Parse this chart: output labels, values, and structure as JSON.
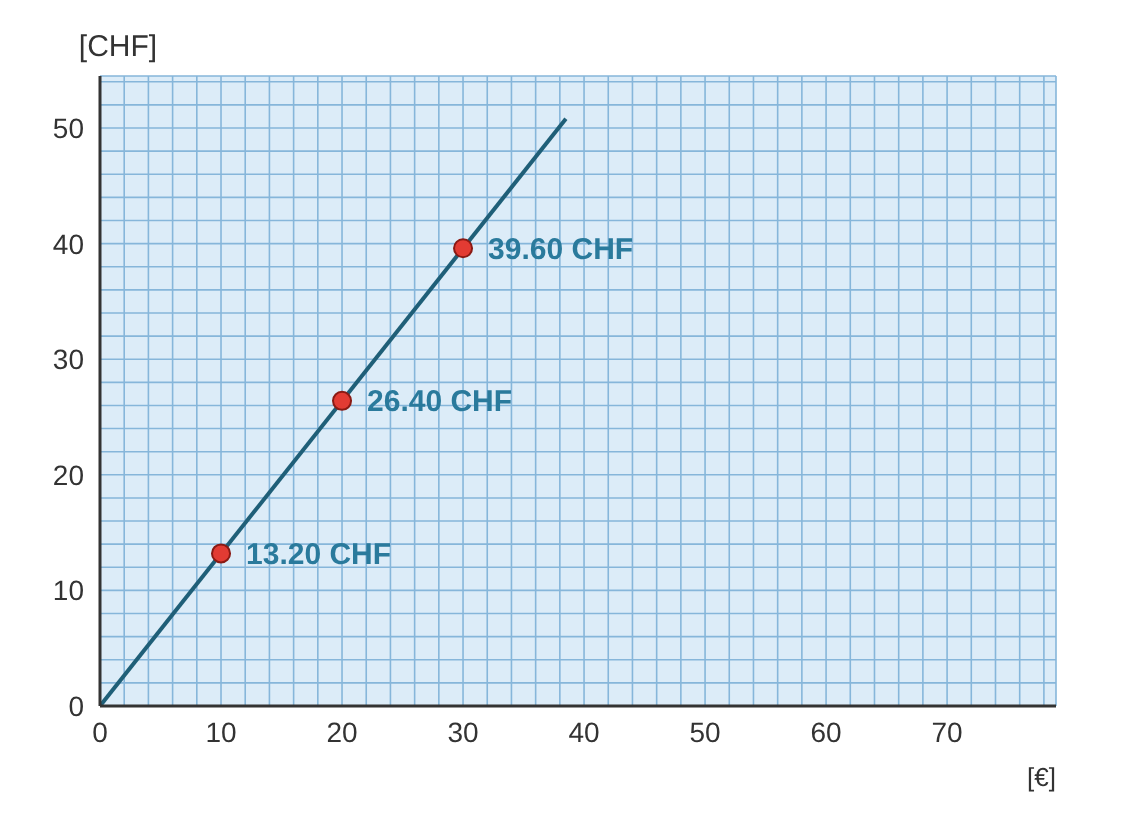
{
  "chart_data": {
    "type": "line",
    "xlabel": "[€]",
    "ylabel": "[CHF]",
    "xlim": [
      0,
      79
    ],
    "ylim": [
      0,
      54.5
    ],
    "xticks": [
      0,
      {
        "value": 2,
        "label": null
      },
      {
        "value": 4,
        "label": null
      },
      {
        "value": 6,
        "label": null
      },
      {
        "value": 8,
        "label": null
      },
      10,
      {
        "value": 12,
        "label": null
      },
      {
        "value": 14,
        "label": null
      },
      {
        "value": 16,
        "label": null
      },
      {
        "value": 18,
        "label": null
      },
      20,
      {
        "value": 22,
        "label": null
      },
      {
        "value": 24,
        "label": null
      },
      {
        "value": 26,
        "label": null
      },
      {
        "value": 28,
        "label": null
      },
      30,
      {
        "value": 32,
        "label": null
      },
      {
        "value": 34,
        "label": null
      },
      {
        "value": 36,
        "label": null
      },
      {
        "value": 38,
        "label": null
      },
      40,
      {
        "value": 42,
        "label": null
      },
      {
        "value": 44,
        "label": null
      },
      {
        "value": 46,
        "label": null
      },
      {
        "value": 48,
        "label": null
      },
      50,
      {
        "value": 52,
        "label": null
      },
      {
        "value": 54,
        "label": null
      },
      {
        "value": 56,
        "label": null
      },
      {
        "value": 58,
        "label": null
      },
      60,
      {
        "value": 62,
        "label": null
      },
      {
        "value": 64,
        "label": null
      },
      {
        "value": 66,
        "label": null
      },
      {
        "value": 68,
        "label": null
      },
      70,
      {
        "value": 72,
        "label": null
      },
      {
        "value": 74,
        "label": null
      },
      {
        "value": 76,
        "label": null
      },
      {
        "value": 78,
        "label": null
      }
    ],
    "yticks": [
      0,
      {
        "value": 2,
        "label": null
      },
      {
        "value": 4,
        "label": null
      },
      {
        "value": 6,
        "label": null
      },
      {
        "value": 8,
        "label": null
      },
      10,
      {
        "value": 12,
        "label": null
      },
      {
        "value": 14,
        "label": null
      },
      {
        "value": 16,
        "label": null
      },
      {
        "value": 18,
        "label": null
      },
      20,
      {
        "value": 22,
        "label": null
      },
      {
        "value": 24,
        "label": null
      },
      {
        "value": 26,
        "label": null
      },
      {
        "value": 28,
        "label": null
      },
      30,
      {
        "value": 32,
        "label": null
      },
      {
        "value": 34,
        "label": null
      },
      {
        "value": 36,
        "label": null
      },
      {
        "value": 38,
        "label": null
      },
      40,
      {
        "value": 42,
        "label": null
      },
      {
        "value": 44,
        "label": null
      },
      {
        "value": 46,
        "label": null
      },
      {
        "value": 48,
        "label": null
      },
      50,
      {
        "value": 52,
        "label": null
      },
      {
        "value": 54,
        "label": null
      }
    ],
    "grid": true,
    "series": [
      {
        "color": "#1f5f78",
        "x": [
          0,
          38.5
        ],
        "values": [
          0,
          50.8
        ],
        "marker": "none"
      },
      {
        "type": "scatter",
        "color": "#e23b33",
        "x": [
          10,
          20,
          30
        ],
        "values": [
          13.2,
          26.4,
          39.6
        ],
        "marker": "circle",
        "value_labels": [
          "13.20 CHF",
          "26.40 CHF",
          "39.60 CHF"
        ]
      }
    ]
  }
}
